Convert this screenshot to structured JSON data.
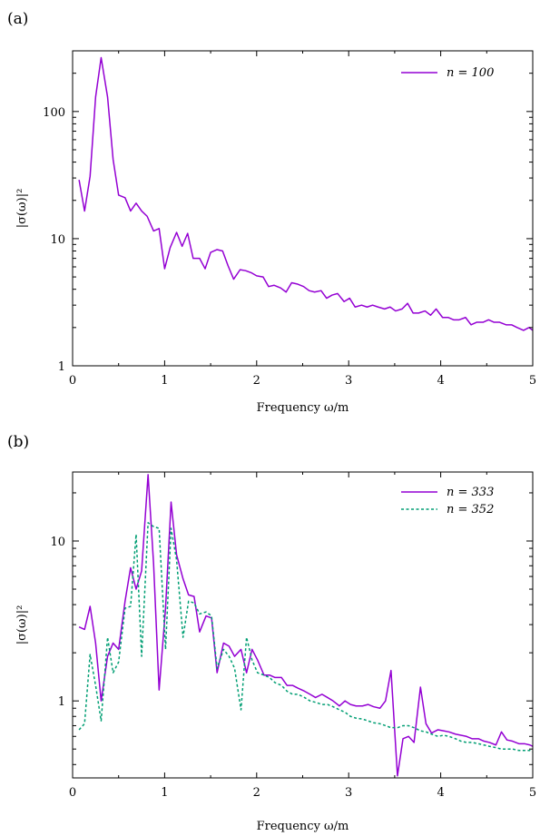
{
  "chart_data": [
    {
      "type": "line",
      "panel_label": "(a)",
      "xlabel": "Frequency ω/m",
      "ylabel": "|σ(ω)|²",
      "xlim": [
        0,
        5
      ],
      "ylim": [
        1,
        300
      ],
      "yscale": "log",
      "xticks": [
        0,
        1,
        2,
        3,
        4,
        5
      ],
      "xtick_labels": [
        "0",
        "1",
        "2",
        "3",
        "4",
        "5"
      ],
      "yticks": [
        1,
        10,
        100
      ],
      "ytick_labels": [
        "1",
        "10",
        "100"
      ],
      "grid": false,
      "legend_position": "top-right",
      "series": [
        {
          "name": "n = 100",
          "color": "#9400D3",
          "dash": "solid",
          "x": [
            0.07,
            0.13,
            0.19,
            0.25,
            0.31,
            0.38,
            0.44,
            0.5,
            0.57,
            0.63,
            0.69,
            0.75,
            0.81,
            0.88,
            0.94,
            1.0,
            1.06,
            1.13,
            1.19,
            1.25,
            1.31,
            1.38,
            1.44,
            1.5,
            1.57,
            1.63,
            1.69,
            1.75,
            1.82,
            1.88,
            1.94,
            2.0,
            2.07,
            2.13,
            2.19,
            2.26,
            2.32,
            2.38,
            2.44,
            2.51,
            2.57,
            2.63,
            2.7,
            2.76,
            2.82,
            2.88,
            2.95,
            3.01,
            3.07,
            3.14,
            3.2,
            3.26,
            3.32,
            3.39,
            3.45,
            3.51,
            3.58,
            3.64,
            3.7,
            3.76,
            3.83,
            3.89,
            3.95,
            4.02,
            4.08,
            4.14,
            4.2,
            4.27,
            4.33,
            4.39,
            4.46,
            4.52,
            4.58,
            4.64,
            4.71,
            4.77,
            4.83,
            4.9,
            4.96,
            5.0
          ],
          "y": [
            29,
            16.5,
            31,
            130,
            265,
            130,
            42,
            22,
            21,
            16.5,
            19,
            16.5,
            15,
            11.5,
            12,
            5.8,
            8.5,
            11.2,
            8.7,
            11,
            7,
            7,
            5.8,
            7.8,
            8.2,
            8,
            6.1,
            4.8,
            5.7,
            5.6,
            5.4,
            5.1,
            5,
            4.2,
            4.3,
            4.1,
            3.8,
            4.5,
            4.4,
            4.2,
            3.9,
            3.8,
            3.9,
            3.4,
            3.6,
            3.7,
            3.2,
            3.4,
            2.9,
            3,
            2.9,
            3,
            2.9,
            2.8,
            2.9,
            2.7,
            2.8,
            3.1,
            2.6,
            2.6,
            2.7,
            2.5,
            2.8,
            2.4,
            2.4,
            2.3,
            2.3,
            2.4,
            2.1,
            2.2,
            2.2,
            2.3,
            2.2,
            2.2,
            2.1,
            2.1,
            2,
            1.9,
            2,
            1.9
          ]
        }
      ]
    },
    {
      "type": "line",
      "panel_label": "(b)",
      "xlabel": "Frequency ω/m",
      "ylabel": "|σ(ω)|²",
      "xlim": [
        0,
        5
      ],
      "ylim": [
        0.33,
        27
      ],
      "yscale": "log",
      "xticks": [
        0,
        1,
        2,
        3,
        4,
        5
      ],
      "xtick_labels": [
        "0",
        "1",
        "2",
        "3",
        "4",
        "5"
      ],
      "yticks": [
        1,
        10
      ],
      "ytick_labels": [
        "1",
        "10"
      ],
      "grid": false,
      "legend_position": "top-right",
      "series": [
        {
          "name": "n = 333",
          "color": "#9400D3",
          "dash": "solid",
          "x": [
            0.07,
            0.13,
            0.19,
            0.25,
            0.31,
            0.38,
            0.44,
            0.5,
            0.57,
            0.63,
            0.69,
            0.75,
            0.82,
            0.88,
            0.94,
            1.01,
            1.07,
            1.13,
            1.2,
            1.26,
            1.32,
            1.38,
            1.45,
            1.51,
            1.57,
            1.64,
            1.7,
            1.76,
            1.83,
            1.89,
            1.95,
            2.01,
            2.08,
            2.14,
            2.2,
            2.27,
            2.33,
            2.39,
            2.45,
            2.52,
            2.58,
            2.64,
            2.71,
            2.77,
            2.83,
            2.9,
            2.96,
            3.02,
            3.08,
            3.15,
            3.21,
            3.27,
            3.34,
            3.4,
            3.46,
            3.53,
            3.59,
            3.65,
            3.71,
            3.78,
            3.84,
            3.9,
            3.97,
            4.03,
            4.09,
            4.16,
            4.22,
            4.28,
            4.34,
            4.41,
            4.47,
            4.53,
            4.6,
            4.66,
            4.72,
            4.78,
            4.85,
            4.91,
            4.97,
            5.0
          ],
          "y": [
            2.9,
            2.8,
            3.9,
            2.3,
            1.0,
            1.9,
            2.3,
            2.1,
            4.2,
            6.8,
            5.0,
            6.5,
            26,
            7.2,
            1.17,
            3.8,
            17.5,
            8.2,
            5.8,
            4.6,
            4.5,
            2.7,
            3.4,
            3.3,
            1.5,
            2.3,
            2.2,
            1.9,
            2.1,
            1.5,
            2.1,
            1.8,
            1.45,
            1.45,
            1.4,
            1.4,
            1.25,
            1.25,
            1.2,
            1.15,
            1.1,
            1.05,
            1.1,
            1.05,
            1.0,
            0.93,
            1.0,
            0.95,
            0.93,
            0.93,
            0.95,
            0.92,
            0.9,
            1.0,
            1.55,
            0.34,
            0.58,
            0.6,
            0.55,
            1.22,
            0.72,
            0.63,
            0.66,
            0.65,
            0.64,
            0.62,
            0.61,
            0.6,
            0.58,
            0.58,
            0.56,
            0.55,
            0.53,
            0.64,
            0.57,
            0.56,
            0.54,
            0.54,
            0.53,
            0.52
          ]
        },
        {
          "name": "n = 352",
          "color": "#009E73",
          "dash": "dashed",
          "x": [
            0.07,
            0.13,
            0.19,
            0.25,
            0.31,
            0.38,
            0.44,
            0.5,
            0.57,
            0.63,
            0.69,
            0.75,
            0.82,
            0.88,
            0.94,
            1.01,
            1.07,
            1.13,
            1.2,
            1.26,
            1.32,
            1.38,
            1.45,
            1.51,
            1.57,
            1.64,
            1.7,
            1.76,
            1.83,
            1.89,
            1.95,
            2.01,
            2.08,
            2.14,
            2.2,
            2.27,
            2.33,
            2.39,
            2.45,
            2.52,
            2.58,
            2.64,
            2.71,
            2.77,
            2.83,
            2.9,
            2.96,
            3.02,
            3.08,
            3.15,
            3.21,
            3.27,
            3.34,
            3.4,
            3.46,
            3.53,
            3.59,
            3.65,
            3.71,
            3.78,
            3.84,
            3.9,
            3.97,
            4.03,
            4.09,
            4.16,
            4.22,
            4.28,
            4.34,
            4.41,
            4.47,
            4.53,
            4.6,
            4.66,
            4.72,
            4.78,
            4.85,
            4.91,
            4.97,
            5.0
          ],
          "y": [
            0.66,
            0.72,
            1.95,
            1.25,
            0.75,
            2.5,
            1.5,
            1.75,
            3.8,
            3.9,
            11,
            1.9,
            13,
            12.3,
            12,
            2.1,
            12,
            7.6,
            2.5,
            4.2,
            4.1,
            3.5,
            3.6,
            3.4,
            1.6,
            2.1,
            1.9,
            1.6,
            0.88,
            2.5,
            1.8,
            1.5,
            1.45,
            1.4,
            1.3,
            1.25,
            1.15,
            1.1,
            1.1,
            1.05,
            1.0,
            0.98,
            0.95,
            0.95,
            0.92,
            0.88,
            0.85,
            0.8,
            0.78,
            0.77,
            0.75,
            0.73,
            0.72,
            0.7,
            0.68,
            0.68,
            0.7,
            0.7,
            0.68,
            0.65,
            0.64,
            0.62,
            0.6,
            0.61,
            0.6,
            0.58,
            0.56,
            0.55,
            0.55,
            0.54,
            0.53,
            0.52,
            0.51,
            0.5,
            0.5,
            0.5,
            0.49,
            0.49,
            0.49,
            0.48
          ]
        }
      ]
    }
  ]
}
